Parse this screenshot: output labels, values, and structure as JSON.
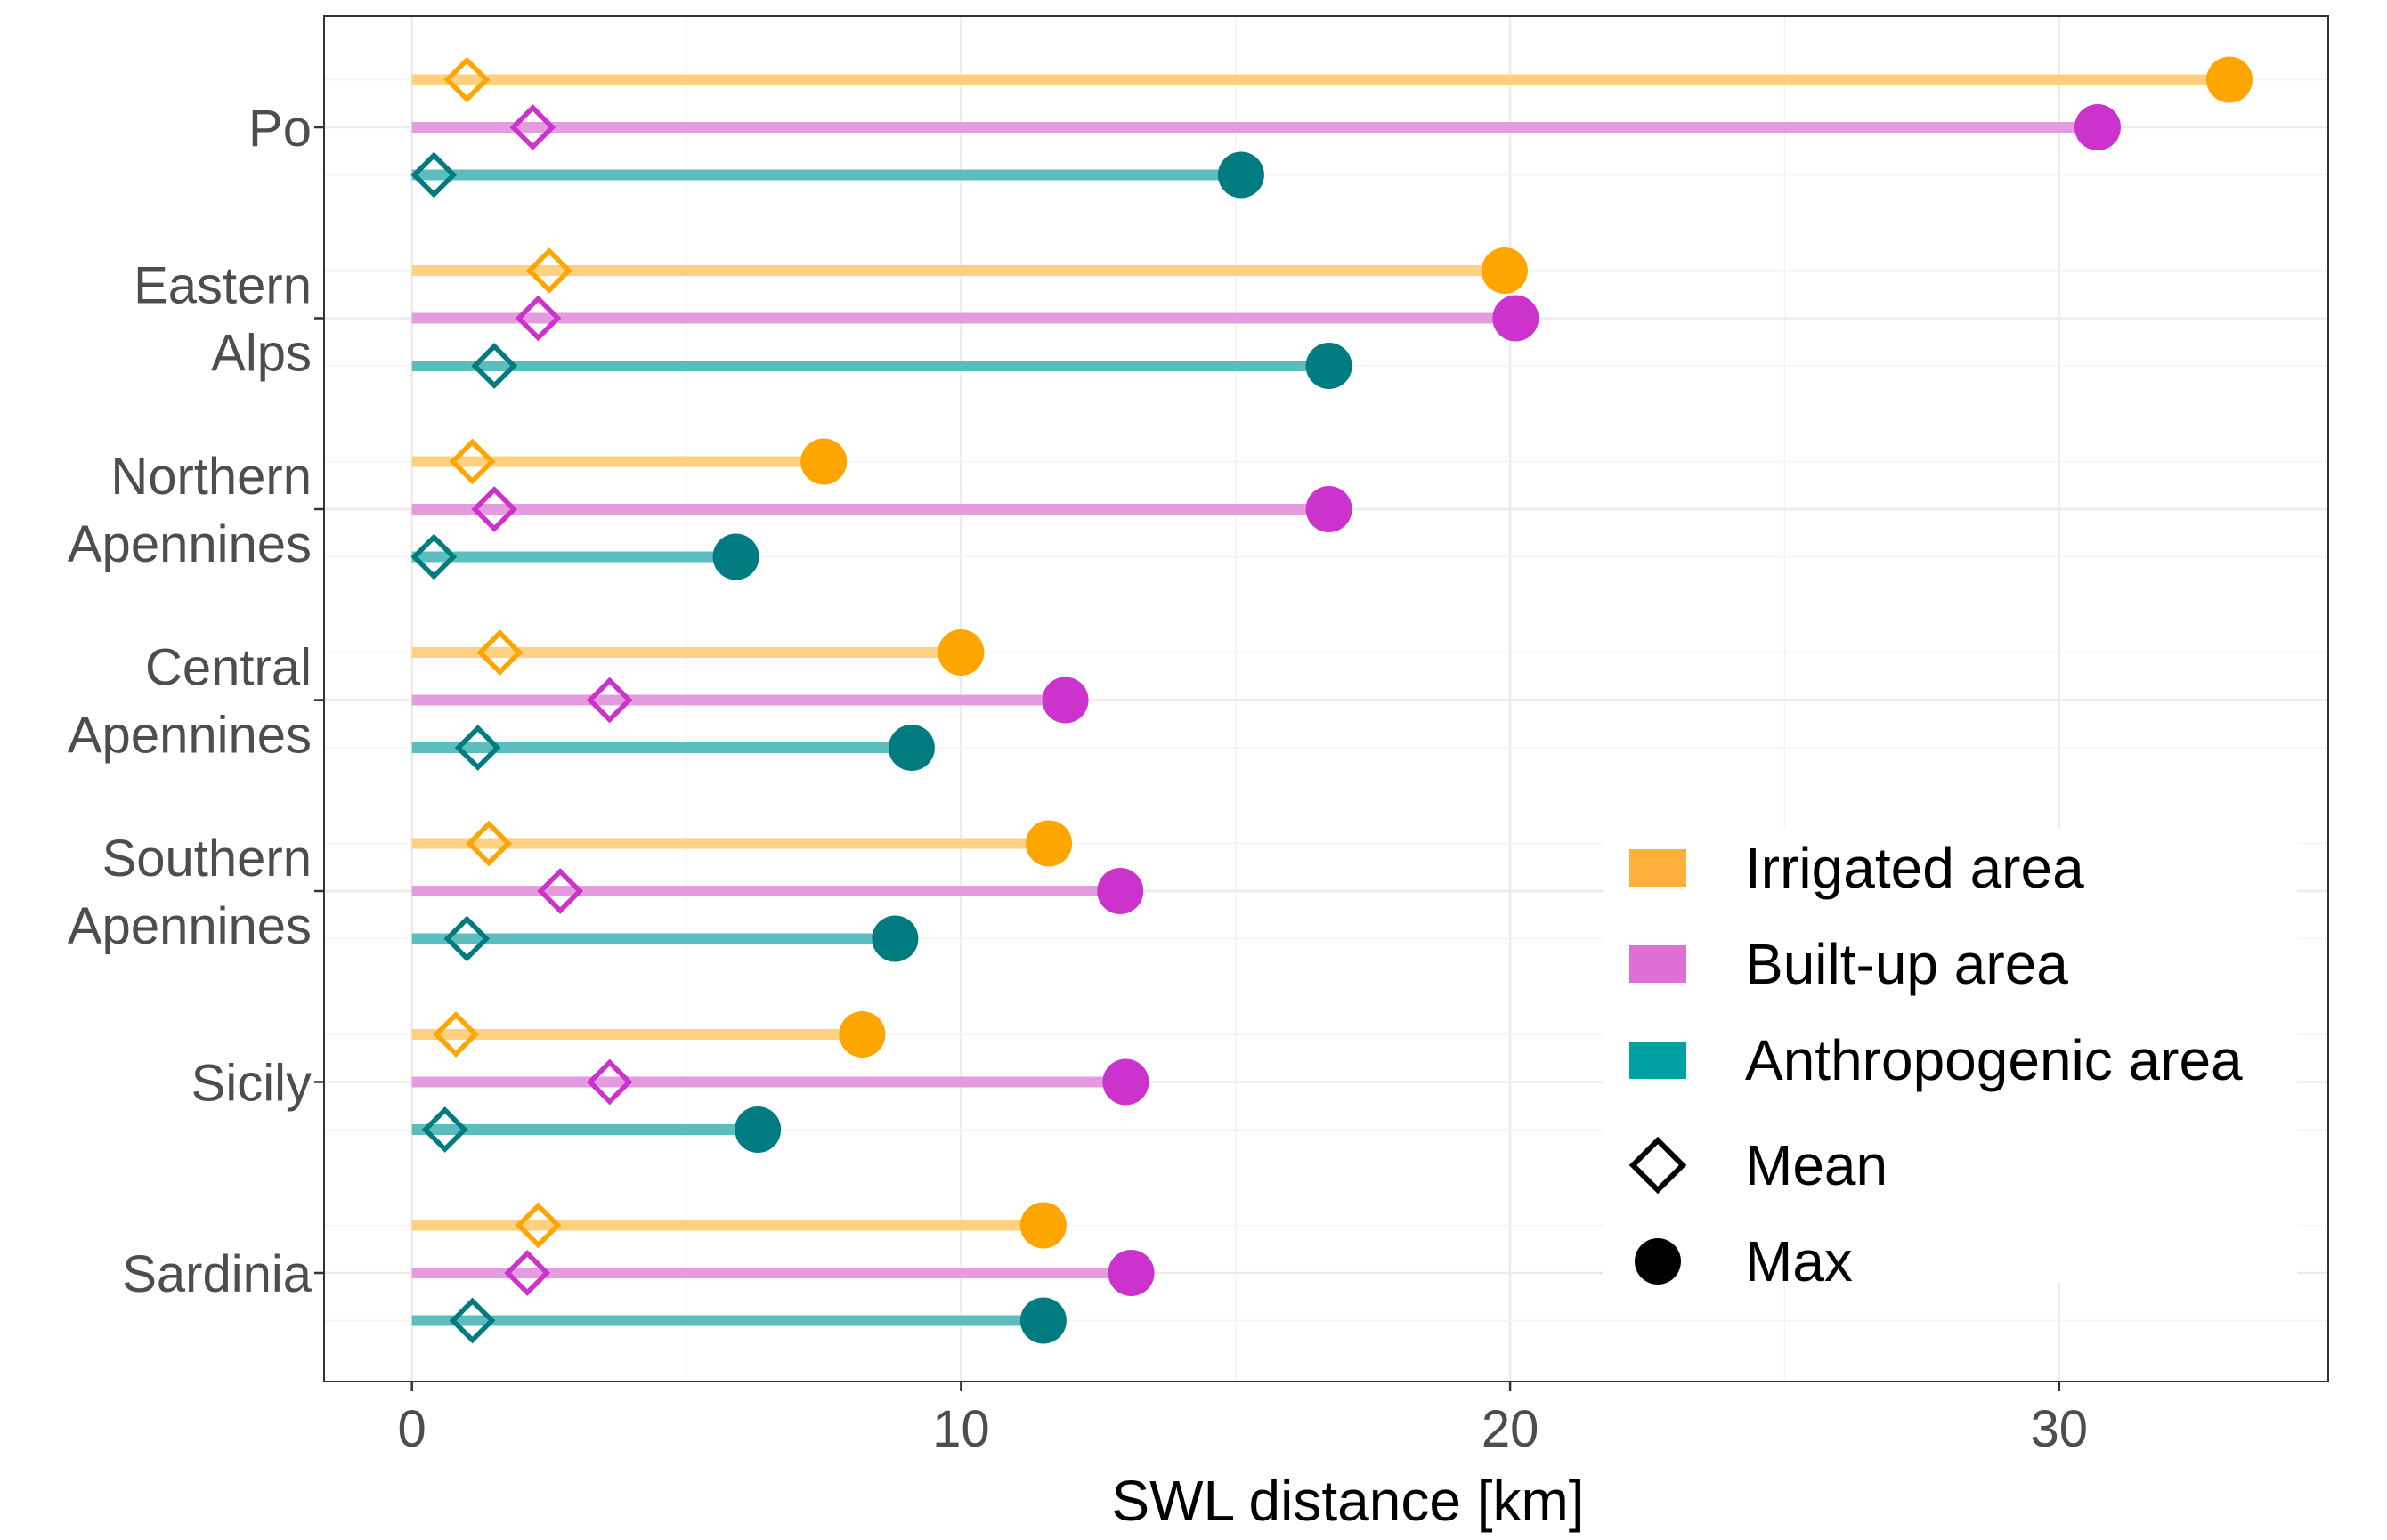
{
  "chart_data": {
    "type": "lollipop",
    "title": "",
    "xlabel": "SWL distance [km]",
    "ylabel": "",
    "xlim": [
      -1.6,
      34.9
    ],
    "xticks": [
      0,
      10,
      20,
      30
    ],
    "grid": true,
    "legend_position": "right",
    "regions": [
      {
        "label_lines": [
          "Po"
        ]
      },
      {
        "label_lines": [
          "Eastern",
          "Alps"
        ]
      },
      {
        "label_lines": [
          "Northern",
          "Apennines"
        ]
      },
      {
        "label_lines": [
          "Central",
          "Apennines"
        ]
      },
      {
        "label_lines": [
          "Southern",
          "Apennines"
        ]
      },
      {
        "label_lines": [
          "Sicily"
        ]
      },
      {
        "label_lines": [
          "Sardinia"
        ]
      }
    ],
    "series": [
      {
        "name": "Irrigated area",
        "line_color": "#FFD080",
        "point_color": "#FFA500",
        "mean": [
          1.0,
          2.5,
          1.1,
          1.6,
          1.4,
          0.8,
          2.3
        ],
        "max": [
          33.1,
          19.9,
          7.5,
          10.0,
          11.6,
          8.2,
          11.5
        ]
      },
      {
        "name": "Built-up area",
        "line_color": "#E49BE0",
        "point_color": "#CC33CC",
        "mean": [
          2.2,
          2.3,
          1.5,
          3.6,
          2.7,
          3.6,
          2.1
        ],
        "max": [
          30.7,
          20.1,
          16.7,
          11.9,
          12.9,
          13.0,
          13.1
        ]
      },
      {
        "name": "Anthropogenic area",
        "line_color": "#5CBDBF",
        "point_color": "#007B80",
        "mean": [
          0.4,
          1.5,
          0.4,
          1.2,
          1.0,
          0.6,
          1.1
        ],
        "max": [
          15.1,
          16.7,
          5.9,
          9.1,
          8.8,
          6.3,
          11.5
        ]
      }
    ],
    "legend": {
      "series": [
        {
          "label": "Irrigated area",
          "color": "#FFB03A"
        },
        {
          "label": "Built-up area",
          "color": "#DD6FD5"
        },
        {
          "label": "Anthropogenic area",
          "color": "#00A0A5"
        }
      ],
      "shapes": [
        {
          "label": "Mean",
          "shape": "diamond-open"
        },
        {
          "label": "Max",
          "shape": "circle-filled"
        }
      ]
    }
  }
}
